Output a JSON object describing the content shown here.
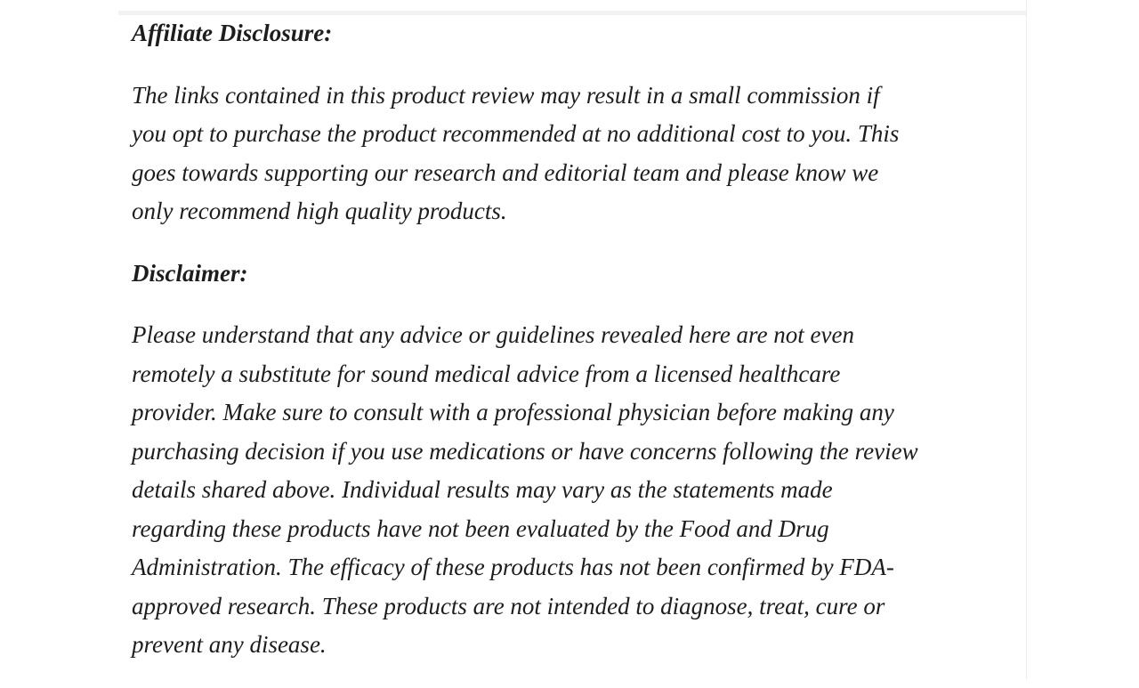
{
  "page": {
    "background_color": "#ffffff",
    "text_color": "#1d1d1d",
    "divider_color": "#ececec",
    "top_band_color": "#f2f2f2"
  },
  "article": {
    "affiliate_heading": "Affiliate Disclosure:",
    "affiliate_paragraph_lines": [
      "The links contained in this product review may result in a small commission if",
      "you opt to purchase the product recommended at no additional cost to you. This",
      "goes towards supporting our research and editorial team and please know we",
      "only recommend high quality products."
    ],
    "disclaimer_heading": "Disclaimer:",
    "disclaimer_paragraph_lines": [
      "Please understand that any advice or guidelines revealed here are not even",
      "remotely a substitute for sound medical advice from a licensed healthcare",
      "provider. Make sure to consult with a professional physician before making any",
      "purchasing decision if you use medications or have concerns following the review",
      "details shared above. Individual results may vary as the statements made",
      "regarding these products have not been evaluated by the Food and Drug",
      "Administration. The efficacy of these products has not been confirmed by FDA-",
      "approved research. These products are not intended to diagnose, treat, cure or",
      "prevent any disease."
    ]
  }
}
